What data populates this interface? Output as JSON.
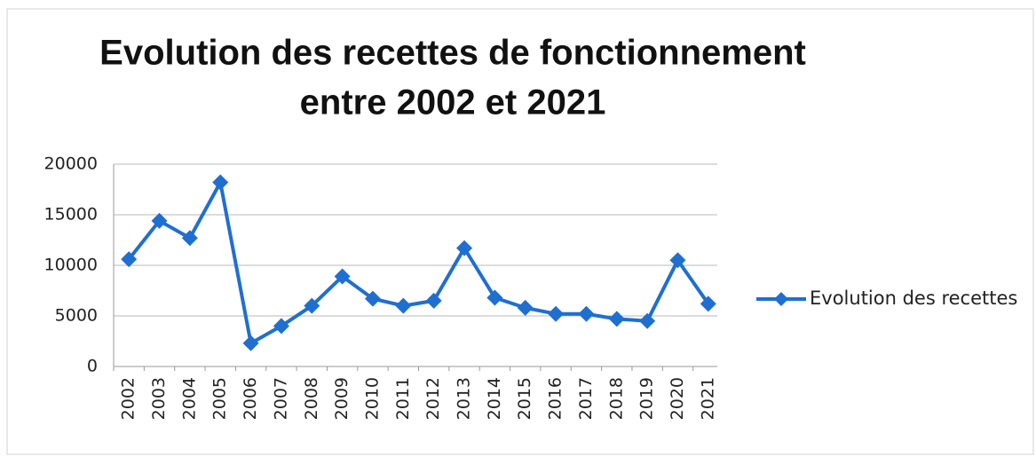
{
  "chart_data": {
    "type": "line",
    "title": [
      "Evolution des recettes de fonctionnement",
      "entre 2002 et 2021"
    ],
    "categories": [
      "2002",
      "2003",
      "2004",
      "2005",
      "2006",
      "2007",
      "2008",
      "2009",
      "2010",
      "2011",
      "2012",
      "2013",
      "2014",
      "2015",
      "2016",
      "2017",
      "2018",
      "2019",
      "2020",
      "2021"
    ],
    "series": [
      {
        "name": "Evolution des recettes",
        "color": "#1f6fd1",
        "values": [
          10600,
          14400,
          12700,
          18200,
          2300,
          4000,
          6000,
          8900,
          6700,
          6000,
          6500,
          11700,
          6800,
          5800,
          5200,
          5200,
          4700,
          4500,
          10500,
          6200
        ]
      }
    ],
    "ylim": [
      0,
      20000
    ],
    "yticks": [
      0,
      5000,
      10000,
      15000,
      20000
    ],
    "grid": true,
    "legend": "right"
  }
}
